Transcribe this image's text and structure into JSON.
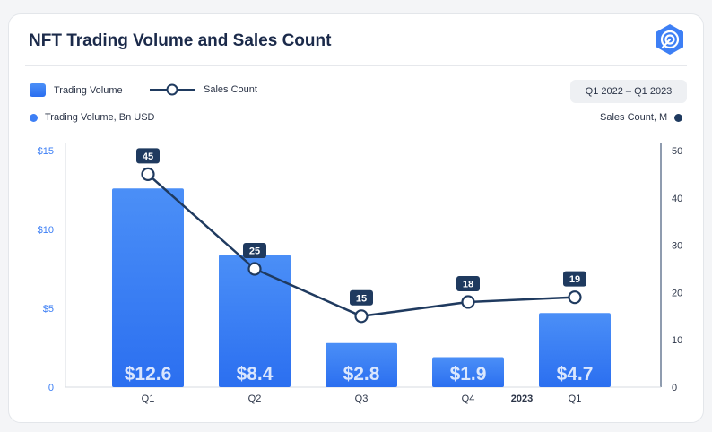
{
  "header": {
    "title": "NFT Trading Volume and Sales Count",
    "logo_icon": "radar-logo-icon"
  },
  "legend": {
    "bar_label": "Trading Volume",
    "line_label": "Sales Count"
  },
  "period": "Q1 2022 – Q1 2023",
  "axis_titles": {
    "left": "Trading Volume, Bn USD",
    "right": "Sales Count, M"
  },
  "colors": {
    "bar_top": "#4b8ff7",
    "bar_bottom": "#2b6ff0",
    "line": "#1f3a5f",
    "left_tick": "#3d7ff5",
    "right_tick": "#2b3447"
  },
  "chart_data": {
    "type": "bar",
    "categories": [
      "Q1",
      "Q2",
      "Q3",
      "Q4",
      "Q1"
    ],
    "year_label": "2023",
    "series": [
      {
        "name": "Trading Volume",
        "type": "bar",
        "axis": "left",
        "values": [
          12.6,
          8.4,
          2.8,
          1.9,
          4.7
        ],
        "labels": [
          "$12.6",
          "$8.4",
          "$2.8",
          "$1.9",
          "$4.7"
        ]
      },
      {
        "name": "Sales Count",
        "type": "line",
        "axis": "right",
        "values": [
          45,
          25,
          15,
          18,
          19
        ],
        "labels": [
          "45",
          "25",
          "15",
          "18",
          "19"
        ]
      }
    ],
    "left_axis": {
      "ylim": [
        0,
        15
      ],
      "ticks": [
        0,
        5,
        10,
        15
      ],
      "tick_labels": [
        "0",
        "$5",
        "$10",
        "$15"
      ]
    },
    "right_axis": {
      "ylim": [
        0,
        50
      ],
      "ticks": [
        0,
        10,
        20,
        30,
        40,
        50
      ],
      "tick_labels": [
        "0",
        "10",
        "20",
        "30",
        "40",
        "50"
      ]
    }
  }
}
